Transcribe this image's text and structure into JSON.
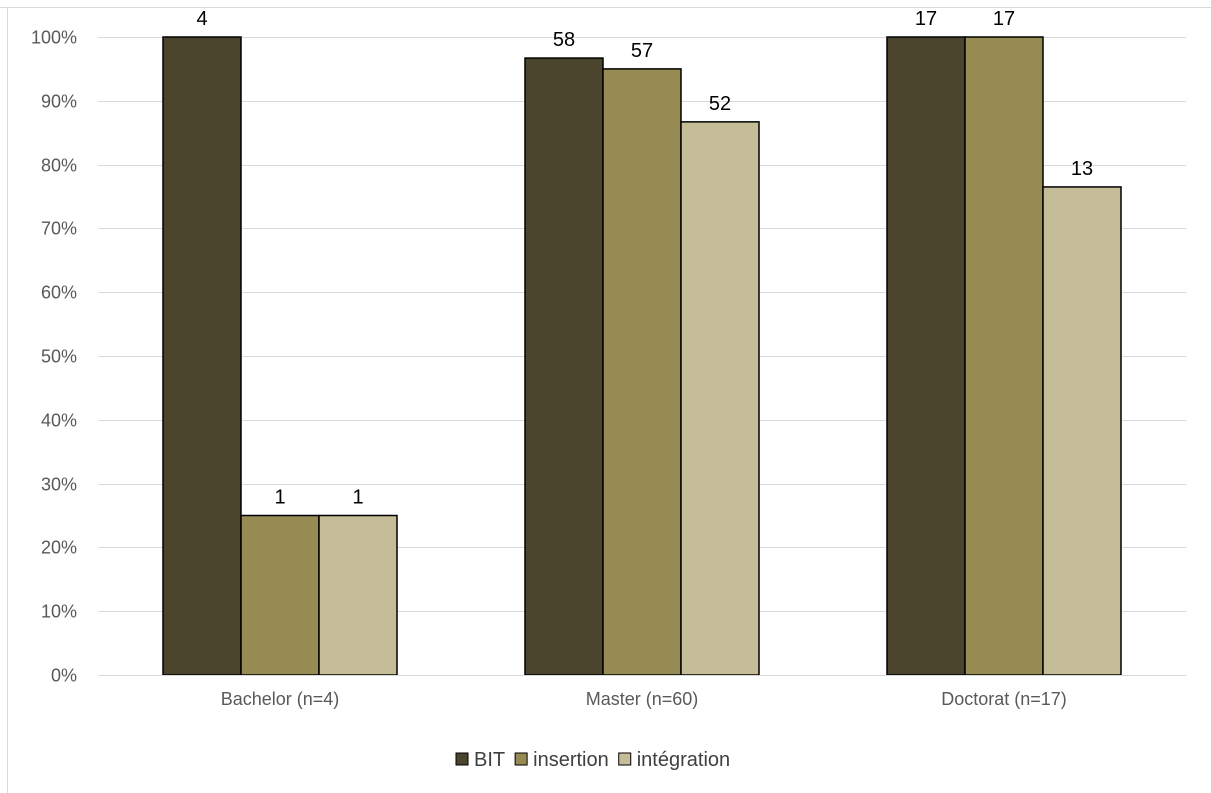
{
  "chart_data": {
    "type": "bar",
    "title": "",
    "xlabel": "",
    "ylabel": "",
    "ylim": [
      0,
      100
    ],
    "y_tick_step": 10,
    "y_tick_format": "percent",
    "grid": true,
    "legend_position": "bottom",
    "categories": [
      "Bachelor (n=4)",
      "Master (n=60)",
      "Doctorat (n=17)"
    ],
    "series": [
      {
        "name": "BIT",
        "color": "#4a452c",
        "values": [
          100,
          96.7,
          100
        ],
        "data_labels": [
          "4",
          "58",
          "17"
        ]
      },
      {
        "name": "insertion",
        "color": "#968b52",
        "values": [
          25,
          95,
          100
        ],
        "data_labels": [
          "1",
          "57",
          "17"
        ]
      },
      {
        "name": "intégration",
        "color": "#c5bd97",
        "values": [
          25,
          86.7,
          76.5
        ],
        "data_labels": [
          "1",
          "52",
          "13"
        ]
      }
    ]
  }
}
